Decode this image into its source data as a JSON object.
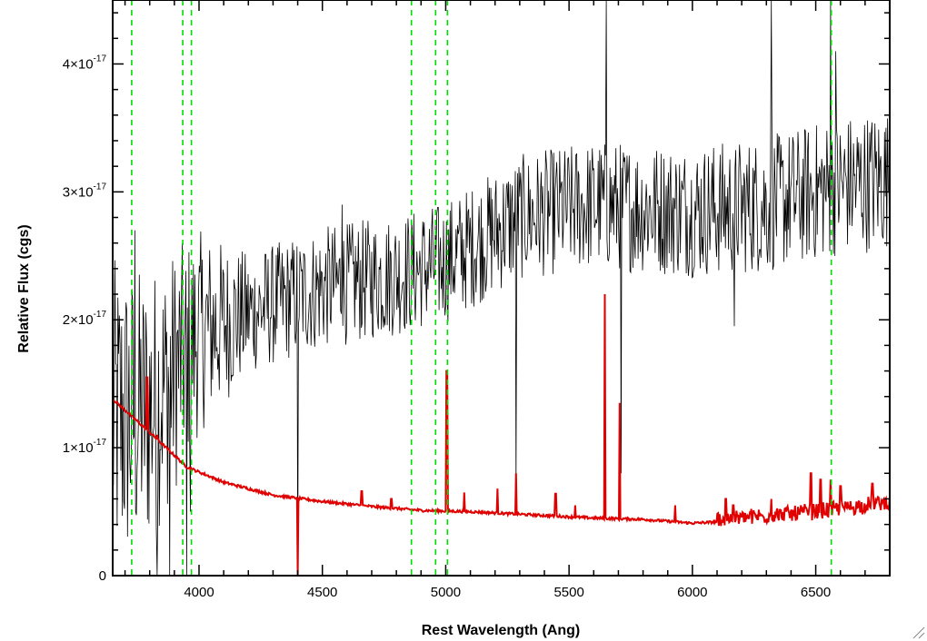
{
  "chart_data": {
    "type": "line",
    "xlabel": "Rest Wavelength (Ang)",
    "ylabel": "Relative Flux (cgs)",
    "xlim": [
      3650,
      6800
    ],
    "ylim": [
      0,
      4.5e-17
    ],
    "xticks": [
      {
        "value": 4000,
        "label": "4000"
      },
      {
        "value": 4500,
        "label": "4500"
      },
      {
        "value": 5000,
        "label": "5000"
      },
      {
        "value": 5500,
        "label": "5500"
      },
      {
        "value": 6000,
        "label": "6000"
      },
      {
        "value": 6500,
        "label": "6500"
      }
    ],
    "yticks": [
      {
        "value": 0,
        "mantissa": "0",
        "exponent": ""
      },
      {
        "value": 1e-17,
        "mantissa": "1×10",
        "exponent": "-17"
      },
      {
        "value": 2e-17,
        "mantissa": "2×10",
        "exponent": "-17"
      },
      {
        "value": 3e-17,
        "mantissa": "3×10",
        "exponent": "-17"
      },
      {
        "value": 4e-17,
        "mantissa": "4×10",
        "exponent": "-17"
      }
    ],
    "series": [
      {
        "color": "#000000",
        "continuum": [
          [
            3650,
            1.2e-17
          ],
          [
            3800,
            1.3e-17
          ],
          [
            4000,
            1.9e-17
          ],
          [
            4200,
            2.05e-17
          ],
          [
            4500,
            2.25e-17
          ],
          [
            4800,
            2.35e-17
          ],
          [
            5000,
            2.45e-17
          ],
          [
            5300,
            2.8e-17
          ],
          [
            5600,
            2.9e-17
          ],
          [
            6000,
            2.85e-17
          ],
          [
            6300,
            2.9e-17
          ],
          [
            6600,
            3.05e-17
          ],
          [
            6800,
            3.1e-17
          ]
        ],
        "noise_amplitude": [
          [
            3650,
            8e-18
          ],
          [
            3900,
            6e-18
          ],
          [
            4200,
            3e-18
          ],
          [
            5000,
            3e-18
          ],
          [
            6800,
            3.5e-18
          ]
        ],
        "features": [
          [
            3740,
            2.7e-17
          ],
          [
            3830,
            0.0
          ],
          [
            3880,
            0.0
          ],
          [
            3950,
            0.0
          ],
          [
            3965,
            5e-18
          ],
          [
            4400,
            0.0
          ],
          [
            4580,
            2.9e-17
          ],
          [
            5285,
            7e-18
          ],
          [
            5650,
            4.5e-17
          ],
          [
            5710,
            8e-18
          ],
          [
            6170,
            1.95e-17
          ],
          [
            6320,
            4.5e-17
          ],
          [
            6560,
            4.5e-17
          ],
          [
            6580,
            4.1e-17
          ]
        ]
      },
      {
        "color": "#e00000",
        "continuum": [
          [
            3650,
            1.38e-17
          ],
          [
            3800,
            1.12e-17
          ],
          [
            3950,
            8.5e-18
          ],
          [
            4100,
            7.3e-18
          ],
          [
            4300,
            6.3e-18
          ],
          [
            4500,
            5.8e-18
          ],
          [
            4700,
            5.4e-18
          ],
          [
            4900,
            5.1e-18
          ],
          [
            5100,
            5e-18
          ],
          [
            5300,
            4.8e-18
          ],
          [
            5600,
            4.5e-18
          ],
          [
            5800,
            4.4e-18
          ],
          [
            6000,
            4.1e-18
          ],
          [
            6200,
            4.3e-18
          ],
          [
            6400,
            4.6e-18
          ],
          [
            6600,
            5e-18
          ],
          [
            6800,
            5.5e-18
          ]
        ],
        "spikes": [
          [
            3790,
            1.55e-17
          ],
          [
            3830,
            1.1e-17
          ],
          [
            4400,
            0.0
          ],
          [
            4660,
            6.6e-18
          ],
          [
            4780,
            6e-18
          ],
          [
            5005,
            1.6e-17
          ],
          [
            5075,
            6.5e-18
          ],
          [
            5210,
            6.8e-18
          ],
          [
            5285,
            8e-18
          ],
          [
            5445,
            6.4e-18
          ],
          [
            5525,
            5.5e-18
          ],
          [
            5645,
            2.2e-17
          ],
          [
            5705,
            1.35e-17
          ],
          [
            5930,
            5.5e-18
          ],
          [
            6135,
            6e-18
          ],
          [
            6165,
            5.5e-18
          ],
          [
            6320,
            6e-18
          ],
          [
            6480,
            8e-18
          ],
          [
            6520,
            7.5e-18
          ],
          [
            6560,
            7.5e-18
          ],
          [
            6600,
            7e-18
          ],
          [
            6730,
            7.2e-18
          ]
        ]
      }
    ],
    "vlines": [
      3727,
      3934,
      3969,
      4861,
      4959,
      5007,
      6563
    ],
    "vline_color": "#00dd00"
  }
}
